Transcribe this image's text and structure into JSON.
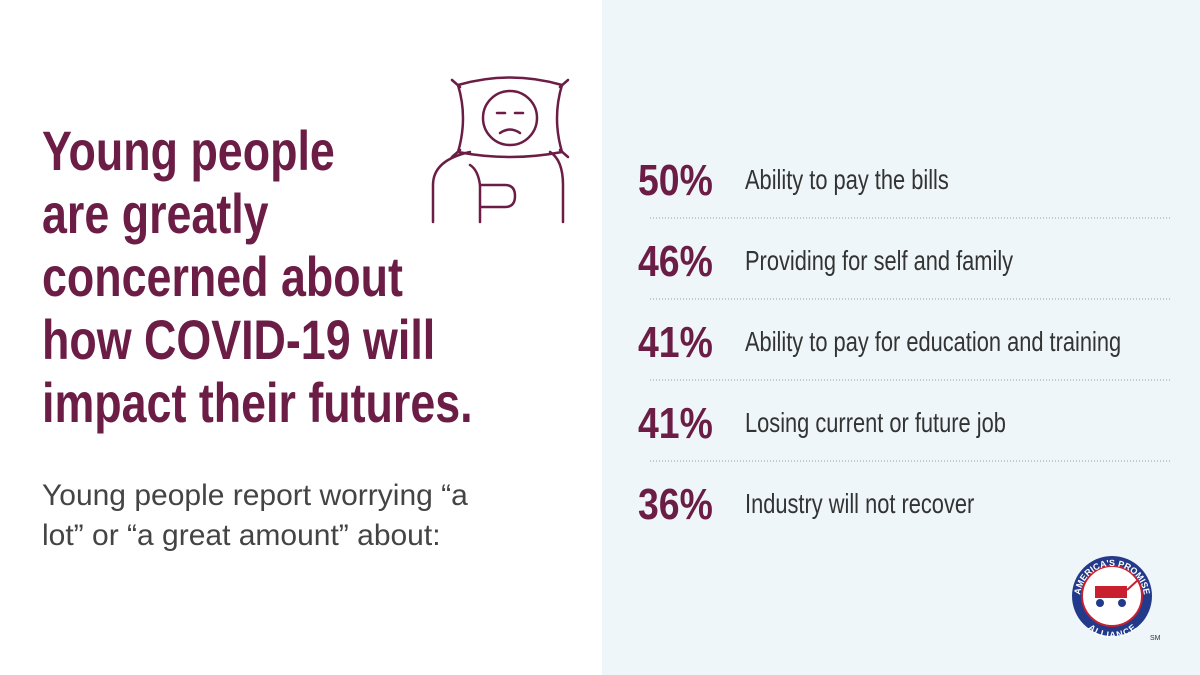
{
  "title": [
    "Young people",
    "are greatly",
    "concerned about",
    "how COVID-19 will",
    "impact their futures."
  ],
  "subtitle": [
    "Young people report worrying “a",
    "lot” or “a great amount” about:"
  ],
  "items": [
    {
      "percent": "50%",
      "label": "Ability to pay the bills"
    },
    {
      "percent": "46%",
      "label": "Providing for self and family"
    },
    {
      "percent": "41%",
      "label": "Ability to pay for education and training"
    },
    {
      "percent": "41%",
      "label": "Losing current or future job"
    },
    {
      "percent": "36%",
      "label": "Industry will not recover"
    }
  ],
  "logo": {
    "top": "AMERICA'S PROMISE",
    "bottom": "ALLIANCE",
    "mark": "SM"
  }
}
